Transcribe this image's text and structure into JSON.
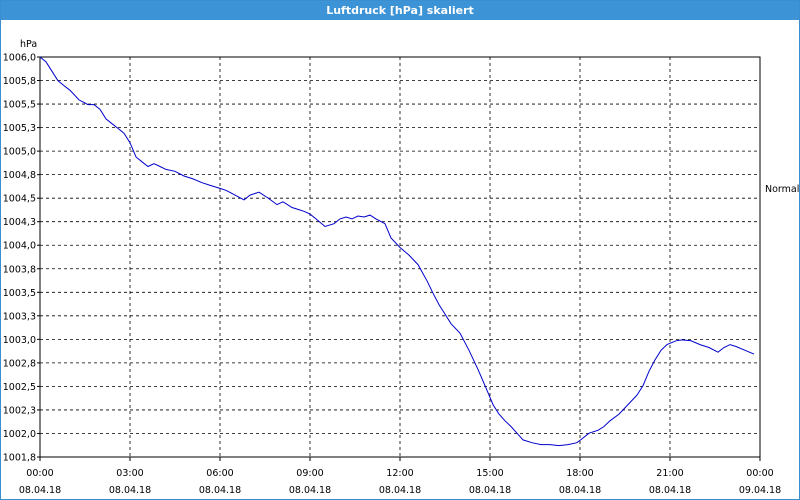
{
  "window": {
    "title": "Luftdruck [hPa] skaliert"
  },
  "chart_data": {
    "type": "line",
    "title": "Luftdruck [hPa] skaliert",
    "ylabel": "hPa",
    "xlabel": "",
    "ylim": [
      1001.8,
      1006.0
    ],
    "xlim": [
      0,
      24
    ],
    "grid": true,
    "legend_position": "right",
    "y_ticks": [
      "1006,0",
      "1005,8",
      "1005,5",
      "1005,3",
      "1005,0",
      "1004,8",
      "1004,5",
      "1004,3",
      "1004,0",
      "1003,8",
      "1003,5",
      "1003,3",
      "1003,0",
      "1002,8",
      "1002,5",
      "1002,3",
      "1002,0",
      "1001,8"
    ],
    "x_ticks": [
      {
        "time": "00:00",
        "date": "08.04.18"
      },
      {
        "time": "03:00",
        "date": "08.04.18"
      },
      {
        "time": "06:00",
        "date": "08.04.18"
      },
      {
        "time": "09:00",
        "date": "08.04.18"
      },
      {
        "time": "12:00",
        "date": "08.04.18"
      },
      {
        "time": "15:00",
        "date": "08.04.18"
      },
      {
        "time": "18:00",
        "date": "08.04.18"
      },
      {
        "time": "21:00",
        "date": "08.04.18"
      },
      {
        "time": "00:00",
        "date": "09.04.18"
      }
    ],
    "series": [
      {
        "name": "Normal",
        "color": "#0000cc",
        "x": [
          0,
          0.2,
          0.4,
          0.6,
          0.8,
          1.0,
          1.3,
          1.6,
          1.8,
          2.0,
          2.2,
          2.4,
          2.6,
          2.8,
          3.0,
          3.2,
          3.4,
          3.6,
          3.8,
          4.0,
          4.2,
          4.5,
          4.8,
          5.1,
          5.4,
          5.7,
          6.0,
          6.2,
          6.5,
          6.8,
          7.0,
          7.3,
          7.6,
          7.9,
          8.1,
          8.4,
          8.6,
          8.8,
          9.0,
          9.2,
          9.5,
          9.8,
          10.0,
          10.2,
          10.4,
          10.6,
          10.8,
          11.0,
          11.2,
          11.5,
          11.7,
          12.0,
          12.3,
          12.6,
          12.9,
          13.1,
          13.3,
          13.5,
          13.7,
          14.0,
          14.3,
          14.6,
          14.9,
          15.1,
          15.3,
          15.5,
          15.7,
          15.9,
          16.1,
          16.4,
          16.7,
          17.0,
          17.3,
          17.6,
          17.9,
          18.1,
          18.3,
          18.6,
          18.8,
          19.0,
          19.3,
          19.6,
          19.9,
          20.1,
          20.3,
          20.5,
          20.7,
          20.9,
          21.2,
          21.4,
          21.7,
          22.0,
          22.3,
          22.6,
          22.8,
          23.0,
          23.2,
          23.5,
          23.8
        ],
        "values": [
          1006.0,
          1005.95,
          1005.85,
          1005.75,
          1005.7,
          1005.65,
          1005.55,
          1005.5,
          1005.5,
          1005.45,
          1005.35,
          1005.3,
          1005.25,
          1005.2,
          1005.1,
          1004.95,
          1004.9,
          1004.85,
          1004.88,
          1004.85,
          1004.82,
          1004.8,
          1004.75,
          1004.72,
          1004.68,
          1004.65,
          1004.62,
          1004.6,
          1004.55,
          1004.5,
          1004.55,
          1004.58,
          1004.52,
          1004.45,
          1004.48,
          1004.42,
          1004.4,
          1004.38,
          1004.35,
          1004.3,
          1004.22,
          1004.25,
          1004.3,
          1004.32,
          1004.3,
          1004.33,
          1004.32,
          1004.34,
          1004.3,
          1004.25,
          1004.1,
          1004.0,
          1003.92,
          1003.82,
          1003.65,
          1003.52,
          1003.4,
          1003.3,
          1003.2,
          1003.1,
          1002.92,
          1002.72,
          1002.5,
          1002.35,
          1002.25,
          1002.18,
          1002.12,
          1002.05,
          1001.98,
          1001.95,
          1001.93,
          1001.93,
          1001.92,
          1001.93,
          1001.95,
          1002.0,
          1002.05,
          1002.08,
          1002.12,
          1002.18,
          1002.25,
          1002.35,
          1002.45,
          1002.55,
          1002.7,
          1002.82,
          1002.92,
          1002.98,
          1003.02,
          1003.03,
          1003.02,
          1002.98,
          1002.95,
          1002.9,
          1002.95,
          1002.98,
          1002.96,
          1002.92,
          1002.88
        ]
      }
    ]
  }
}
